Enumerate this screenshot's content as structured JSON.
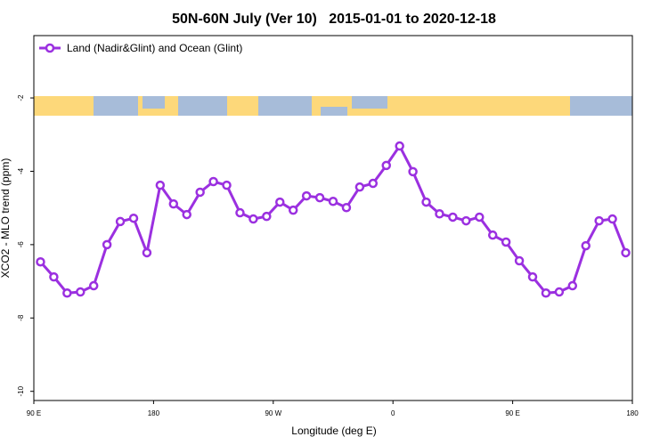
{
  "chart_data": {
    "type": "line",
    "title": "50N-60N July (Ver 10)   2015-01-01 to 2020-12-18",
    "x_label": "Longitude (deg E)",
    "y_label": "XCO2 - MLO trend (ppm)",
    "x": [
      95,
      105,
      115,
      125,
      135,
      145,
      155,
      165,
      175,
      185,
      195,
      205,
      215,
      225,
      235,
      245,
      255,
      265,
      275,
      285,
      295,
      305,
      315,
      325,
      335,
      345,
      355,
      365,
      375,
      385,
      395,
      405,
      415,
      425,
      435,
      445,
      455,
      465,
      475,
      485,
      495,
      505,
      515,
      525,
      535
    ],
    "series": [
      {
        "name": "Land (Nadir&Glint) and Ocean (Glint)",
        "color": "#9b30e0",
        "values": [
          -6.47,
          -6.88,
          -7.32,
          -7.29,
          -7.12,
          -6.0,
          -5.37,
          -5.28,
          -6.22,
          -4.38,
          -4.89,
          -5.18,
          -4.57,
          -4.28,
          -4.38,
          -5.13,
          -5.3,
          -5.23,
          -4.84,
          -5.06,
          -4.67,
          -4.72,
          -4.82,
          -4.99,
          -4.43,
          -4.33,
          -3.84,
          -3.31,
          -4.01,
          -4.84,
          -5.16,
          -5.25,
          -5.35,
          -5.25,
          -5.74,
          -5.93,
          -6.44,
          -6.88,
          -7.32,
          -7.29,
          -7.12,
          -6.03,
          -5.35,
          -5.3,
          -6.22
        ]
      }
    ],
    "xlim": [
      90,
      540
    ],
    "ylim": [
      -10.25,
      -0.3
    ],
    "xticks": [
      {
        "value": 90,
        "label": "90 E"
      },
      180,
      {
        "value": 270,
        "label": "90 W"
      },
      {
        "value": 360,
        "label": "0"
      },
      {
        "value": 450,
        "label": "90 E"
      },
      {
        "value": 540,
        "label": "180"
      }
    ],
    "yticks": [
      -2,
      -4,
      -6,
      -8,
      -10
    ],
    "legend": "top-left"
  }
}
